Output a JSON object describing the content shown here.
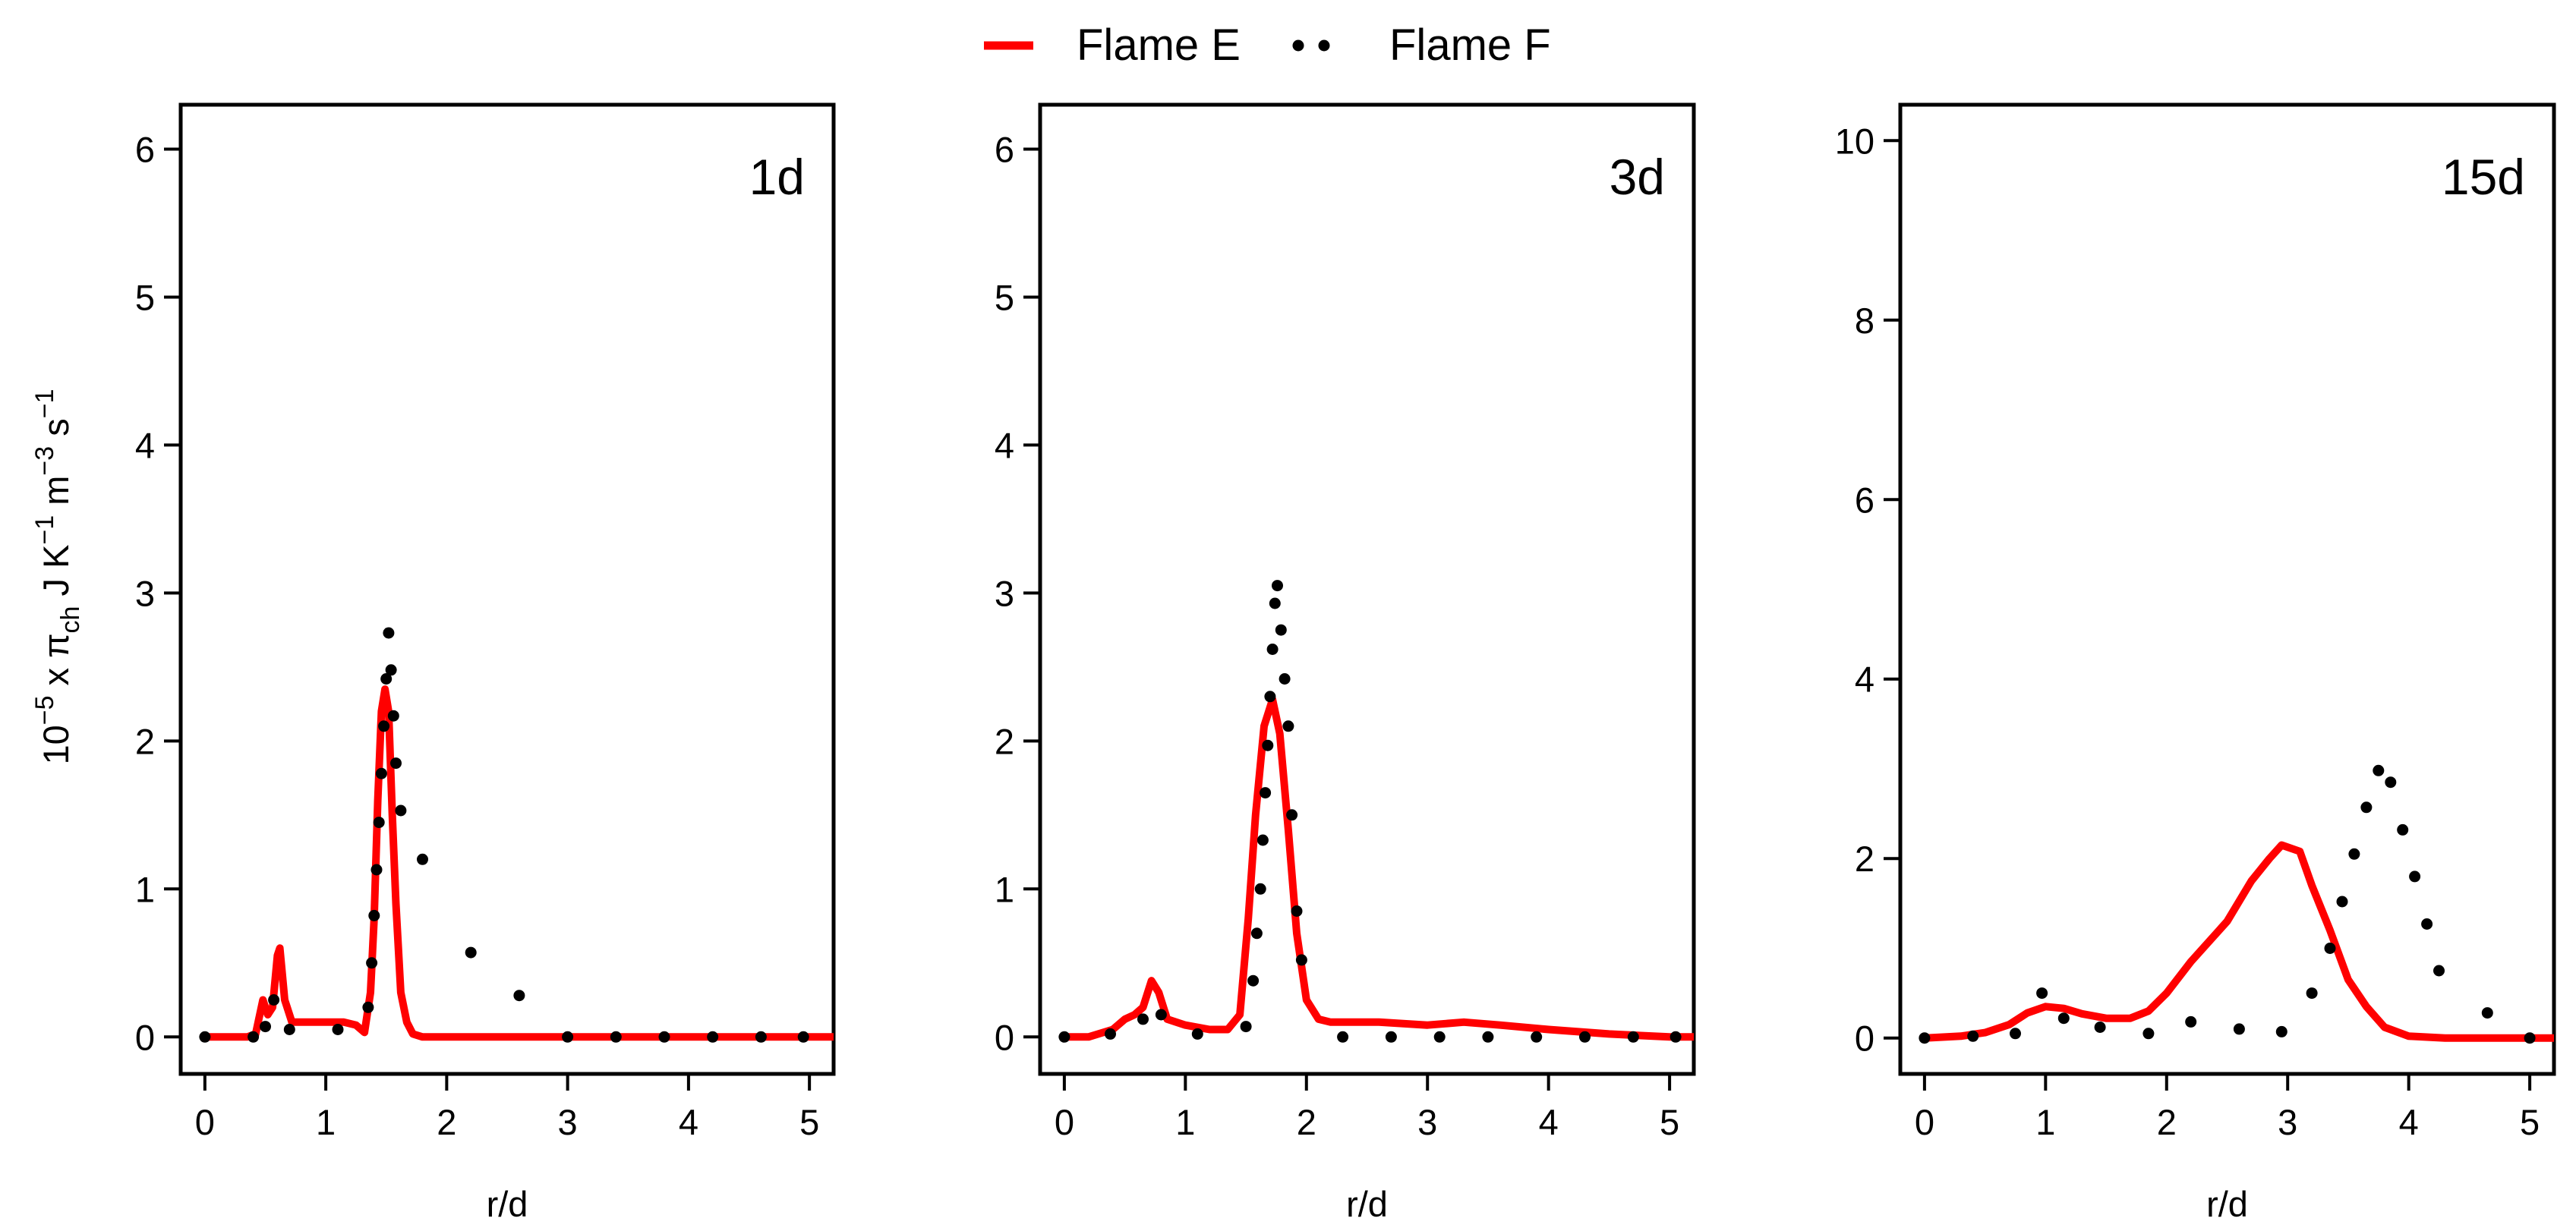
{
  "legend": {
    "items": [
      {
        "label": "Flame E",
        "color": "#ff0000",
        "style": "line"
      },
      {
        "label": "Flame F",
        "color": "#000000",
        "style": "dots"
      }
    ],
    "placement": "top-center"
  },
  "ylabel": {
    "base": "10",
    "exp1": "−5",
    "mid1": " x π",
    "sub": "ch",
    "mid2": " J K",
    "exp2": "−1",
    "mid3": " m",
    "exp3": "−3",
    "mid4": " s",
    "exp4": "−1"
  },
  "chart_data": [
    {
      "type": "line",
      "panel_label": "1d",
      "xlabel": "r/d",
      "xlim": [
        -0.2,
        5.2
      ],
      "ylim": [
        -0.25,
        6.3
      ],
      "xticks": [
        0,
        1,
        2,
        3,
        4,
        5
      ],
      "yticks": [
        0,
        1,
        2,
        3,
        4,
        5,
        6
      ],
      "grid": false,
      "series": [
        {
          "name": "Flame E",
          "style": "line",
          "color": "#ff0000",
          "x": [
            0,
            0.35,
            0.42,
            0.48,
            0.52,
            0.56,
            0.6,
            0.62,
            0.66,
            0.72,
            0.8,
            1.0,
            1.15,
            1.25,
            1.32,
            1.37,
            1.4,
            1.43,
            1.46,
            1.49,
            1.52,
            1.55,
            1.58,
            1.62,
            1.67,
            1.72,
            1.8,
            2.0,
            3.0,
            4.0,
            5.2
          ],
          "y": [
            0,
            0,
            0.02,
            0.25,
            0.15,
            0.2,
            0.55,
            0.6,
            0.25,
            0.1,
            0.1,
            0.1,
            0.1,
            0.08,
            0.03,
            0.3,
            0.8,
            1.6,
            2.2,
            2.35,
            2.2,
            1.5,
            0.9,
            0.3,
            0.1,
            0.02,
            0,
            0,
            0,
            0,
            0
          ]
        },
        {
          "name": "Flame F",
          "style": "dots",
          "color": "#000000",
          "x": [
            0,
            0.4,
            0.5,
            0.57,
            0.7,
            1.1,
            1.35,
            1.38,
            1.4,
            1.42,
            1.44,
            1.46,
            1.48,
            1.5,
            1.52,
            1.54,
            1.56,
            1.58,
            1.62,
            1.8,
            2.2,
            2.6,
            3.0,
            3.4,
            3.8,
            4.2,
            4.6,
            4.95
          ],
          "y": [
            0,
            0,
            0.07,
            0.25,
            0.05,
            0.05,
            0.2,
            0.5,
            0.82,
            1.13,
            1.45,
            1.78,
            2.1,
            2.42,
            2.73,
            2.48,
            2.17,
            1.85,
            1.53,
            1.2,
            0.57,
            0.28,
            0,
            0,
            0,
            0,
            0,
            0
          ]
        }
      ]
    },
    {
      "type": "line",
      "panel_label": "3d",
      "xlabel": "r/d",
      "xlim": [
        -0.2,
        5.2
      ],
      "ylim": [
        -0.25,
        6.3
      ],
      "xticks": [
        0,
        1,
        2,
        3,
        4,
        5
      ],
      "yticks": [
        0,
        1,
        2,
        3,
        4,
        5,
        6
      ],
      "grid": false,
      "series": [
        {
          "name": "Flame E",
          "style": "line",
          "color": "#ff0000",
          "x": [
            0,
            0.2,
            0.4,
            0.5,
            0.58,
            0.65,
            0.72,
            0.78,
            0.85,
            1.0,
            1.2,
            1.35,
            1.45,
            1.52,
            1.58,
            1.65,
            1.72,
            1.78,
            1.85,
            1.92,
            2.0,
            2.1,
            2.2,
            2.6,
            3.0,
            3.3,
            3.6,
            4.0,
            4.5,
            5.0,
            5.2
          ],
          "y": [
            0,
            0,
            0.05,
            0.12,
            0.15,
            0.2,
            0.38,
            0.3,
            0.12,
            0.08,
            0.05,
            0.05,
            0.15,
            0.8,
            1.5,
            2.1,
            2.28,
            2.05,
            1.4,
            0.7,
            0.25,
            0.12,
            0.1,
            0.1,
            0.08,
            0.1,
            0.08,
            0.05,
            0.02,
            0,
            0
          ]
        },
        {
          "name": "Flame F",
          "style": "dots",
          "color": "#000000",
          "x": [
            0,
            0.38,
            0.65,
            0.8,
            1.1,
            1.5,
            1.56,
            1.59,
            1.62,
            1.64,
            1.66,
            1.68,
            1.7,
            1.72,
            1.74,
            1.76,
            1.79,
            1.82,
            1.85,
            1.88,
            1.92,
            1.96,
            2.3,
            2.7,
            3.1,
            3.5,
            3.9,
            4.3,
            4.7,
            5.05
          ],
          "y": [
            0,
            0.02,
            0.12,
            0.15,
            0.02,
            0.07,
            0.38,
            0.7,
            1.0,
            1.33,
            1.65,
            1.97,
            2.3,
            2.62,
            2.93,
            3.05,
            2.75,
            2.42,
            2.1,
            1.5,
            0.85,
            0.52,
            0,
            0,
            0,
            0,
            0,
            0,
            0,
            0
          ]
        }
      ]
    },
    {
      "type": "line",
      "panel_label": "15d",
      "xlabel": "r/d",
      "xlim": [
        -0.2,
        5.2
      ],
      "ylim": [
        -0.4,
        10.4
      ],
      "xticks": [
        0,
        1,
        2,
        3,
        4,
        5
      ],
      "yticks": [
        0,
        2,
        4,
        6,
        8,
        10
      ],
      "grid": false,
      "series": [
        {
          "name": "Flame E",
          "style": "line",
          "color": "#ff0000",
          "x": [
            0,
            0.3,
            0.5,
            0.7,
            0.85,
            1.0,
            1.15,
            1.3,
            1.5,
            1.7,
            1.85,
            2.0,
            2.2,
            2.5,
            2.7,
            2.85,
            2.95,
            3.1,
            3.2,
            3.35,
            3.5,
            3.65,
            3.8,
            4.0,
            4.3,
            4.6,
            5.0,
            5.2
          ],
          "y": [
            0,
            0.02,
            0.06,
            0.15,
            0.28,
            0.35,
            0.33,
            0.27,
            0.22,
            0.22,
            0.3,
            0.5,
            0.85,
            1.3,
            1.75,
            2.0,
            2.15,
            2.08,
            1.7,
            1.2,
            0.65,
            0.35,
            0.12,
            0.02,
            0,
            0,
            0,
            0
          ]
        },
        {
          "name": "Flame F",
          "style": "dots",
          "color": "#000000",
          "x": [
            0,
            0.4,
            0.75,
            0.97,
            1.15,
            1.45,
            1.85,
            2.2,
            2.6,
            2.95,
            3.2,
            3.35,
            3.45,
            3.55,
            3.65,
            3.75,
            3.85,
            3.95,
            4.05,
            4.15,
            4.25,
            4.65,
            5.0
          ],
          "y": [
            0,
            0.02,
            0.05,
            0.5,
            0.22,
            0.12,
            0.05,
            0.18,
            0.1,
            0.07,
            0.5,
            1.0,
            1.52,
            2.05,
            2.57,
            2.98,
            2.85,
            2.32,
            1.8,
            1.27,
            0.75,
            0.28,
            0
          ]
        }
      ]
    }
  ]
}
